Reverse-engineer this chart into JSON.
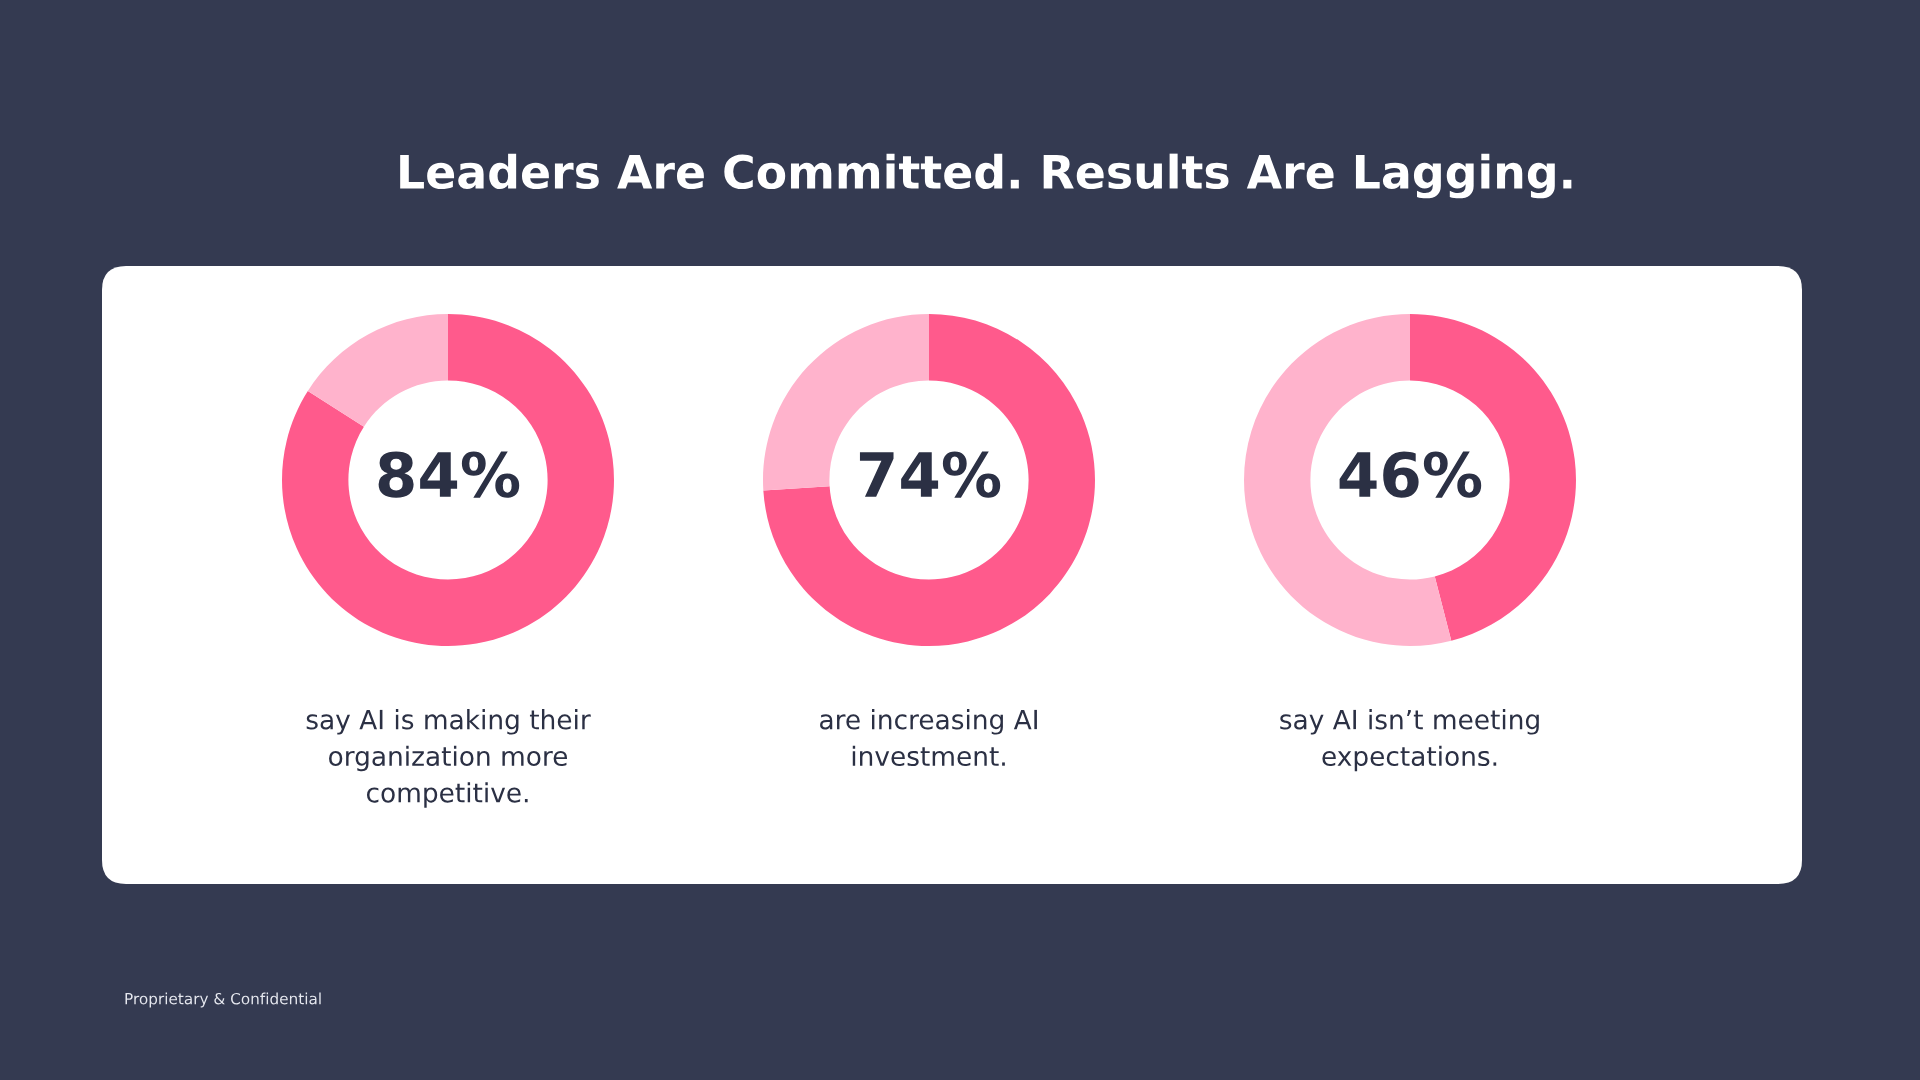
{
  "chart_data": [
    {
      "type": "other",
      "title": "Leaders Are Committed. Results Are Lagging.",
      "annotations": [
        "Proprietary & Confidential"
      ]
    },
    {
      "type": "donut",
      "categories": [
        null,
        null
      ],
      "values": [
        84,
        16
      ],
      "colors": [
        "#ff5a8c",
        "#ffb3cc"
      ],
      "value_labels": [
        "84%",
        null
      ],
      "annotations": [
        "say AI is making their\norganization more\ncompetitive."
      ]
    },
    {
      "type": "donut",
      "categories": [
        null,
        null
      ],
      "values": [
        74,
        26
      ],
      "colors": [
        "#ff5a8c",
        "#ffb3cc"
      ],
      "value_labels": [
        "74%",
        null
      ],
      "annotations": [
        "are increasing AI\ninvestment."
      ]
    },
    {
      "type": "donut",
      "categories": [
        null,
        null
      ],
      "values": [
        46,
        54
      ],
      "colors": [
        "#ff5a8c",
        "#ffb3cc"
      ],
      "value_labels": [
        "46%",
        null
      ],
      "annotations": [
        "say AI isn’t meeting\nexpectations."
      ]
    }
  ]
}
